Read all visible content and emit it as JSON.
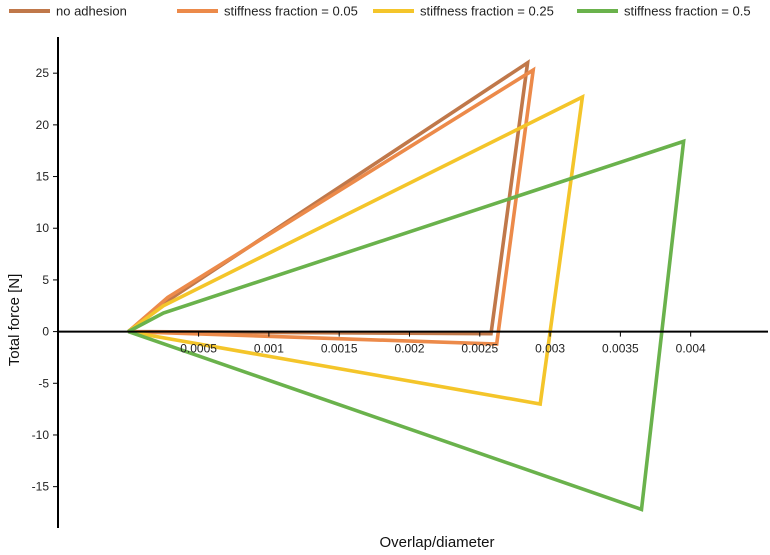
{
  "chart_data": {
    "type": "line",
    "title": "",
    "xlabel": "Overlap/diameter",
    "ylabel": "Total force [N]",
    "xlim": [
      -0.0005,
      0.00455
    ],
    "ylim": [
      -19,
      28.5
    ],
    "x_ticks": [
      0.0005,
      0.001,
      0.0015,
      0.002,
      0.0025,
      0.003,
      0.0035,
      0.004
    ],
    "x_tick_labels": [
      "0.0005",
      "0.001",
      "0.0015",
      "0.002",
      "0.0025",
      "0.003",
      "0.0035",
      "0.004"
    ],
    "y_ticks": [
      25,
      20,
      15,
      10,
      5,
      0,
      -5,
      -10,
      -15
    ],
    "y_tick_labels": [
      "25",
      "20",
      "15",
      "10",
      "5",
      "0",
      "-5",
      "-10",
      "-15"
    ],
    "grid": false,
    "legend_position": "top",
    "series": [
      {
        "name": "no adhesion",
        "color": "#c0784a",
        "x": [
          0.0,
          0.00028,
          0.00284,
          0.00258,
          0.0
        ],
        "y": [
          0.0,
          3.0,
          26.0,
          -0.2,
          0.0
        ]
      },
      {
        "name": "stiffness fraction = 0.05",
        "color": "#ec8a4a",
        "x": [
          0.0,
          0.00028,
          0.00288,
          0.00262,
          0.0
        ],
        "y": [
          0.0,
          3.3,
          25.3,
          -1.2,
          0.0
        ]
      },
      {
        "name": "stiffness fraction = 0.25",
        "color": "#f4c52a",
        "x": [
          0.0,
          0.00025,
          0.00323,
          0.00293,
          0.0
        ],
        "y": [
          0.0,
          2.5,
          22.7,
          -7.0,
          0.0
        ]
      },
      {
        "name": "stiffness fraction = 0.5",
        "color": "#6ab24c",
        "x": [
          0.0,
          0.00025,
          0.00395,
          0.00365,
          0.0
        ],
        "y": [
          0.0,
          1.8,
          18.4,
          -17.2,
          0.0
        ]
      }
    ]
  }
}
